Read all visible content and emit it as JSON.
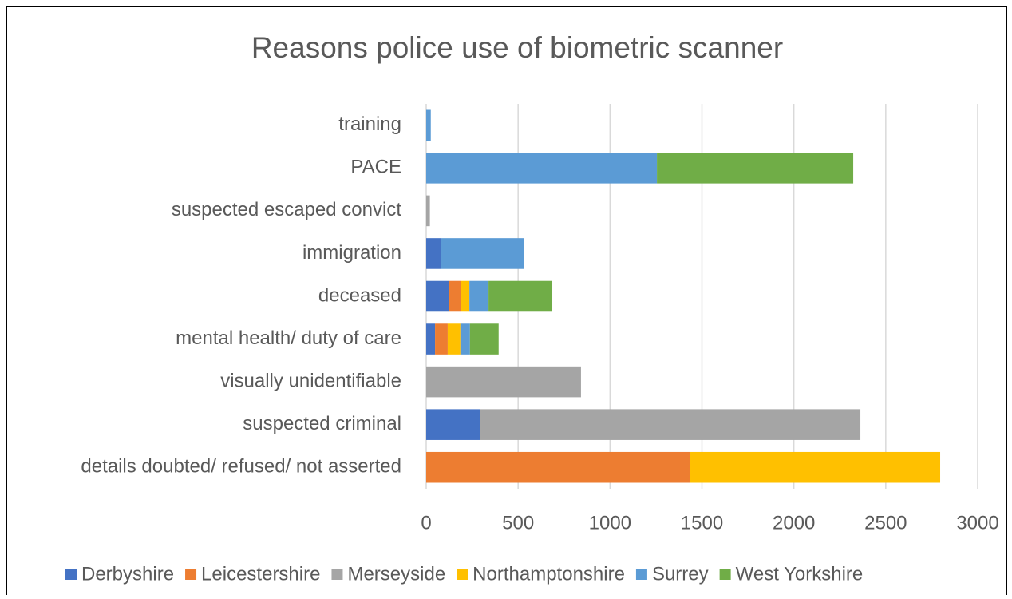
{
  "chart_data": {
    "type": "stacked_bar_horizontal",
    "title": "Reasons police use of biometric scanner",
    "categories": [
      "training",
      "PACE",
      "suspected escaped convict",
      "immigration",
      "deceased",
      "mental health/ duty of care",
      "visually unidentifiable",
      "suspected criminal",
      "details doubted/ refused/ not asserted"
    ],
    "series": [
      {
        "name": "Derbyshire",
        "color": "#4472c4",
        "values": [
          0,
          0,
          0,
          82,
          122,
          48,
          0,
          291,
          0
        ]
      },
      {
        "name": "Leicestershire",
        "color": "#ed7d31",
        "values": [
          0,
          0,
          0,
          0,
          65,
          69,
          0,
          0,
          1437
        ]
      },
      {
        "name": "Merseyside",
        "color": "#a5a5a5",
        "values": [
          0,
          0,
          20,
          0,
          0,
          0,
          842,
          2071,
          0
        ]
      },
      {
        "name": "Northamptonshire",
        "color": "#ffc000",
        "values": [
          0,
          0,
          0,
          0,
          48,
          69,
          0,
          0,
          1359
        ]
      },
      {
        "name": "Surrey",
        "color": "#5b9bd5",
        "values": [
          25,
          1255,
          0,
          452,
          104,
          52,
          0,
          0,
          0
        ]
      },
      {
        "name": "West Yorkshire",
        "color": "#70ad47",
        "values": [
          0,
          1068,
          0,
          0,
          347,
          156,
          0,
          0,
          0
        ]
      }
    ],
    "xlim": [
      0,
      3000
    ],
    "xticks": [
      0,
      500,
      1000,
      1500,
      2000,
      2500,
      3000
    ],
    "grid": true,
    "legend": "bottom"
  }
}
